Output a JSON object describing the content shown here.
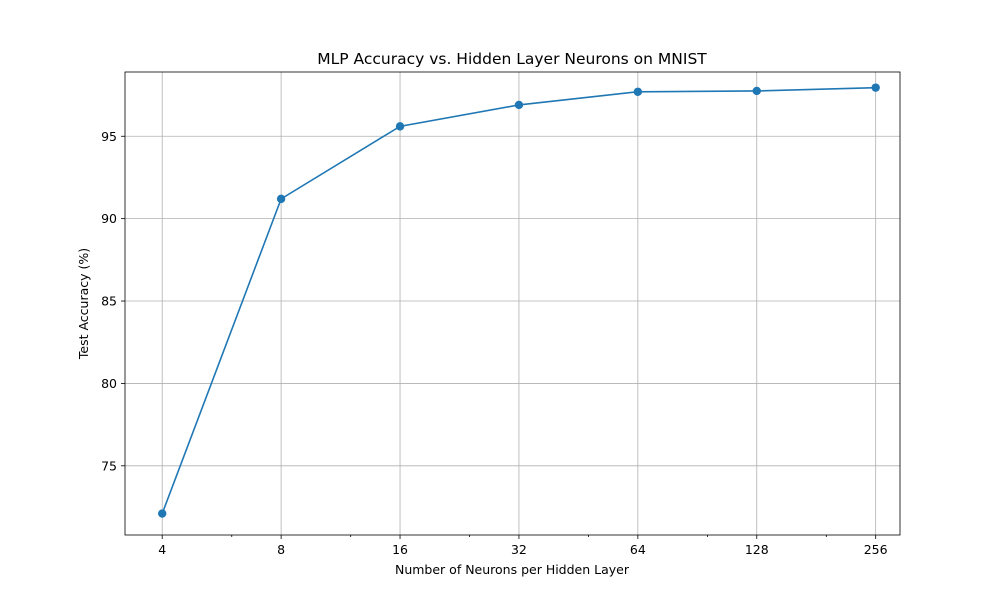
{
  "chart_data": {
    "type": "line",
    "title": "MLP Accuracy vs. Hidden Layer Neurons on MNIST",
    "xlabel": "Number of Neurons per Hidden Layer",
    "ylabel": "Test Accuracy (%)",
    "x_scale": "log2",
    "x": [
      4,
      8,
      16,
      32,
      64,
      128,
      256
    ],
    "x_tick_labels": [
      "4",
      "8",
      "16",
      "32",
      "64",
      "128",
      "256"
    ],
    "y_ticks": [
      75,
      80,
      85,
      90,
      95
    ],
    "xlim": [
      3.22,
      295
    ],
    "ylim": [
      70.8,
      98.9
    ],
    "grid": true,
    "series": [
      {
        "values": [
          72.1,
          91.2,
          95.6,
          96.9,
          97.7,
          97.75,
          97.95
        ],
        "color": "#1f77b4",
        "marker": "circle"
      }
    ]
  }
}
